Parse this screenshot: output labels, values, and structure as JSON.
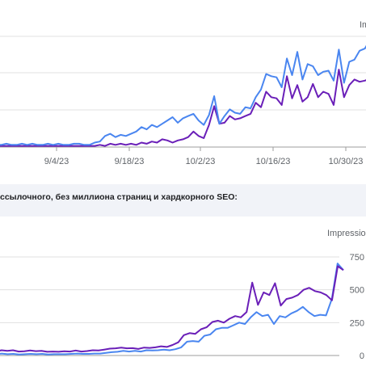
{
  "caption": "ссылочного, без миллиона страниц и хардкорного SEO:",
  "colors": {
    "clicks": "#6a1fb8",
    "impressions": "#4a86f0"
  },
  "chart_data": [
    {
      "type": "line",
      "title": "",
      "axis_label_right": "Im",
      "x_ticks": [
        "9/4/23",
        "9/18/23",
        "10/2/23",
        "10/16/23",
        "10/30/23"
      ],
      "grid": true,
      "series": [
        {
          "values": [
            2,
            2,
            3,
            2,
            2,
            3,
            2,
            3,
            2,
            2,
            3,
            2,
            3,
            2,
            2,
            3,
            3,
            2,
            2,
            4,
            5,
            10,
            12,
            9,
            11,
            10,
            12,
            14,
            18,
            16,
            20,
            18,
            21,
            24,
            27,
            22,
            26,
            28,
            30,
            24,
            20,
            29,
            46,
            21,
            28,
            34,
            31,
            30,
            36,
            35,
            45,
            52,
            66,
            64,
            63,
            54,
            80,
            65,
            86,
            61,
            75,
            73,
            65,
            68,
            69,
            60,
            88,
            58,
            77,
            79,
            87,
            89,
            97
          ]
        },
        {
          "values": [
            1,
            1,
            1,
            1,
            1,
            1,
            1,
            1,
            1,
            1,
            1,
            1,
            1,
            1,
            1,
            1,
            1,
            1,
            1,
            1,
            2,
            1,
            3,
            2,
            3,
            2,
            3,
            2,
            4,
            3,
            5,
            4,
            7,
            6,
            4,
            6,
            7,
            9,
            14,
            10,
            8,
            20,
            37,
            21,
            22,
            28,
            25,
            26,
            28,
            30,
            40,
            36,
            50,
            45,
            44,
            38,
            64,
            44,
            56,
            41,
            45,
            57,
            45,
            50,
            48,
            38,
            70,
            45,
            56,
            61,
            59,
            60,
            62
          ]
        }
      ]
    },
    {
      "type": "line",
      "title": "",
      "axis_label_right": "Impressions",
      "y_ticks_right": [
        "750",
        "500",
        "250",
        "0"
      ],
      "ylim": [
        0,
        750
      ],
      "grid": true,
      "series": [
        {
          "values": [
            30,
            40,
            35,
            40,
            30,
            32,
            38,
            33,
            35,
            28,
            30,
            28,
            32,
            30,
            38,
            30,
            34,
            40,
            38,
            45,
            52,
            55,
            60,
            55,
            56,
            50,
            60,
            58,
            62,
            70,
            65,
            80,
            100,
            155,
            170,
            165,
            200,
            215,
            255,
            265,
            250,
            280,
            300,
            290,
            330,
            555,
            385,
            480,
            460,
            550,
            380,
            430,
            440,
            460,
            500,
            515,
            490,
            480,
            460,
            420,
            680,
            650
          ]
        },
        {
          "values": [
            10,
            15,
            10,
            12,
            8,
            10,
            12,
            10,
            12,
            8,
            10,
            10,
            10,
            12,
            15,
            12,
            12,
            15,
            15,
            20,
            25,
            28,
            35,
            30,
            35,
            30,
            40,
            38,
            40,
            45,
            40,
            48,
            62,
            105,
            110,
            105,
            150,
            160,
            200,
            210,
            210,
            230,
            250,
            240,
            290,
            330,
            300,
            310,
            240,
            300,
            290,
            320,
            340,
            370,
            330,
            300,
            310,
            305,
            430,
            700,
            650
          ]
        }
      ]
    }
  ]
}
